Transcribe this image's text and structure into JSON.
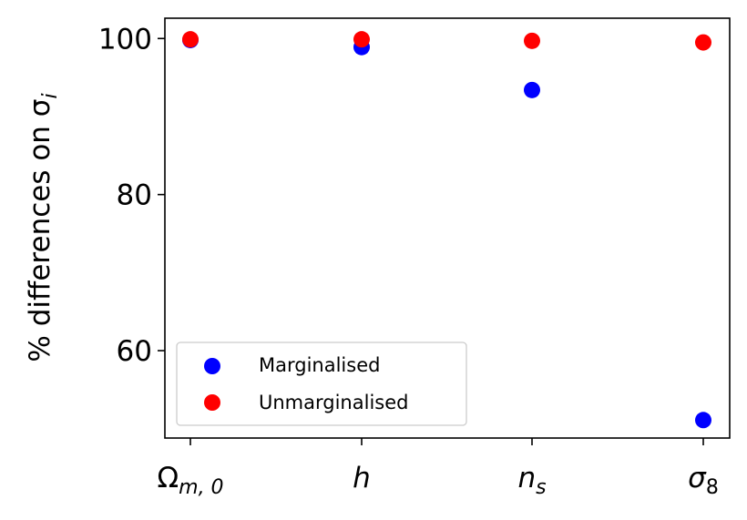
{
  "chart_data": {
    "type": "scatter",
    "title": "",
    "ylabel": "% differences on σ",
    "ylabel_sub": "i",
    "xlabel": "",
    "categories": [
      {
        "main": "Ω",
        "sub": "m, 0"
      },
      {
        "main": "h",
        "sub": ""
      },
      {
        "main": "n",
        "sub": "s"
      },
      {
        "main": "σ",
        "sub": "8"
      }
    ],
    "yticks": [
      60,
      80,
      100
    ],
    "ylim": [
      48.8,
      102.6
    ],
    "grid": false,
    "legend_position": "lower-left",
    "series": [
      {
        "name": "Marginalised",
        "color": "#0000ff",
        "values": [
          99.8,
          98.9,
          93.4,
          51.1
        ]
      },
      {
        "name": "Unmarginalised",
        "color": "#ff0000",
        "values": [
          99.9,
          99.9,
          99.7,
          99.5
        ]
      }
    ]
  }
}
